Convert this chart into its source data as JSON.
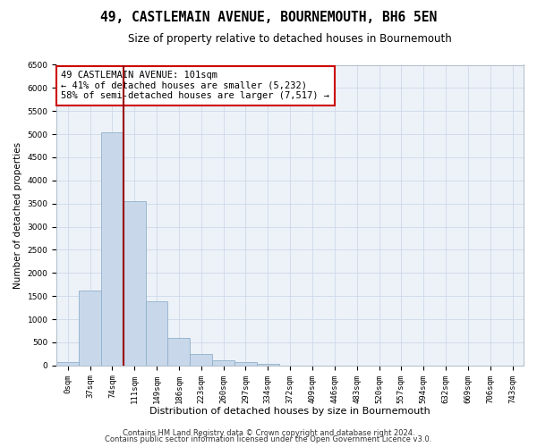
{
  "title": "49, CASTLEMAIN AVENUE, BOURNEMOUTH, BH6 5EN",
  "subtitle": "Size of property relative to detached houses in Bournemouth",
  "xlabel": "Distribution of detached houses by size in Bournemouth",
  "ylabel": "Number of detached properties",
  "bar_color": "#c8d8ea",
  "bar_edge_color": "#8fb0cc",
  "grid_color": "#cdd8e8",
  "bg_color": "#edf2f8",
  "vline_color": "#990000",
  "annotation_box_edge": "#cc0000",
  "annotation_text": "49 CASTLEMAIN AVENUE: 101sqm\n← 41% of detached houses are smaller (5,232)\n58% of semi-detached houses are larger (7,517) →",
  "footer1": "Contains HM Land Registry data © Crown copyright and database right 2024.",
  "footer2": "Contains public sector information licensed under the Open Government Licence v3.0.",
  "categories": [
    "0sqm",
    "37sqm",
    "74sqm",
    "111sqm",
    "149sqm",
    "186sqm",
    "223sqm",
    "260sqm",
    "297sqm",
    "334sqm",
    "372sqm",
    "409sqm",
    "446sqm",
    "483sqm",
    "520sqm",
    "557sqm",
    "594sqm",
    "632sqm",
    "669sqm",
    "706sqm",
    "743sqm"
  ],
  "bar_heights": [
    80,
    1620,
    5050,
    3550,
    1380,
    600,
    250,
    110,
    80,
    40,
    5,
    0,
    0,
    0,
    0,
    0,
    0,
    0,
    0,
    0,
    0
  ],
  "vline_x": 3.0,
  "ylim": [
    0,
    6500
  ],
  "yticks": [
    0,
    500,
    1000,
    1500,
    2000,
    2500,
    3000,
    3500,
    4000,
    4500,
    5000,
    5500,
    6000,
    6500
  ],
  "figsize": [
    6.0,
    5.0
  ],
  "dpi": 100,
  "title_fontsize": 10.5,
  "subtitle_fontsize": 8.5,
  "xlabel_fontsize": 8,
  "ylabel_fontsize": 7.5,
  "tick_fontsize": 6.5,
  "footer_fontsize": 6,
  "annotation_fontsize": 7.5
}
